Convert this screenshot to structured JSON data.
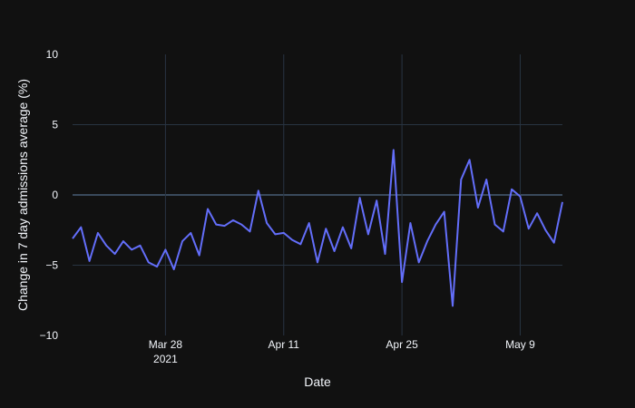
{
  "chart_data": {
    "type": "line",
    "title": "",
    "xlabel": "Date",
    "ylabel": "Change in 7 day admissions average (%)",
    "xlim": [
      "2021-03-17",
      "2021-05-14"
    ],
    "ylim": [
      -10,
      10
    ],
    "grid": true,
    "x_ticks": [
      {
        "date": "2021-03-28",
        "label": "Mar 28",
        "sublabel": "2021"
      },
      {
        "date": "2021-04-11",
        "label": "Apr 11",
        "sublabel": ""
      },
      {
        "date": "2021-04-25",
        "label": "Apr 25",
        "sublabel": ""
      },
      {
        "date": "2021-05-09",
        "label": "May 9",
        "sublabel": ""
      }
    ],
    "y_ticks": [
      {
        "value": 10,
        "label": "10"
      },
      {
        "value": 5,
        "label": "5"
      },
      {
        "value": 0,
        "label": "0"
      },
      {
        "value": -5,
        "label": "−5"
      },
      {
        "value": -10,
        "label": "−10"
      }
    ],
    "colors": {
      "line": "#636efa",
      "background": "#111111",
      "grid": "#283442",
      "zeroline": "#3a4a5c"
    },
    "series": [
      {
        "name": "",
        "x": [
          "2021-03-17",
          "2021-03-18",
          "2021-03-19",
          "2021-03-20",
          "2021-03-21",
          "2021-03-22",
          "2021-03-23",
          "2021-03-24",
          "2021-03-25",
          "2021-03-26",
          "2021-03-27",
          "2021-03-28",
          "2021-03-29",
          "2021-03-30",
          "2021-03-31",
          "2021-04-01",
          "2021-04-02",
          "2021-04-03",
          "2021-04-04",
          "2021-04-05",
          "2021-04-06",
          "2021-04-07",
          "2021-04-08",
          "2021-04-09",
          "2021-04-10",
          "2021-04-11",
          "2021-04-12",
          "2021-04-13",
          "2021-04-14",
          "2021-04-15",
          "2021-04-16",
          "2021-04-17",
          "2021-04-18",
          "2021-04-19",
          "2021-04-20",
          "2021-04-21",
          "2021-04-22",
          "2021-04-23",
          "2021-04-24",
          "2021-04-25",
          "2021-04-26",
          "2021-04-27",
          "2021-04-28",
          "2021-04-29",
          "2021-04-30",
          "2021-05-01",
          "2021-05-02",
          "2021-05-03",
          "2021-05-04",
          "2021-05-05",
          "2021-05-06",
          "2021-05-07",
          "2021-05-08",
          "2021-05-09",
          "2021-05-10",
          "2021-05-11",
          "2021-05-12",
          "2021-05-13",
          "2021-05-14"
        ],
        "y": [
          -3.1,
          -2.3,
          -4.7,
          -2.7,
          -3.6,
          -4.2,
          -3.3,
          -3.9,
          -3.6,
          -4.8,
          -5.1,
          -3.9,
          -5.3,
          -3.3,
          -2.7,
          -4.3,
          -1.0,
          -2.1,
          -2.2,
          -1.8,
          -2.1,
          -2.6,
          0.3,
          -2.0,
          -2.8,
          -2.7,
          -3.2,
          -3.5,
          -2.0,
          -4.8,
          -2.4,
          -4.0,
          -2.3,
          -3.8,
          -0.2,
          -2.8,
          -0.4,
          -4.2,
          3.2,
          -6.2,
          -2.0,
          -4.8,
          -3.3,
          -2.1,
          -1.2,
          -7.9,
          1.1,
          2.5,
          -0.9,
          1.1,
          -2.1,
          -2.6,
          0.4,
          -0.1,
          -2.4,
          -1.3,
          -2.5,
          -3.4,
          -0.5
        ]
      }
    ]
  }
}
